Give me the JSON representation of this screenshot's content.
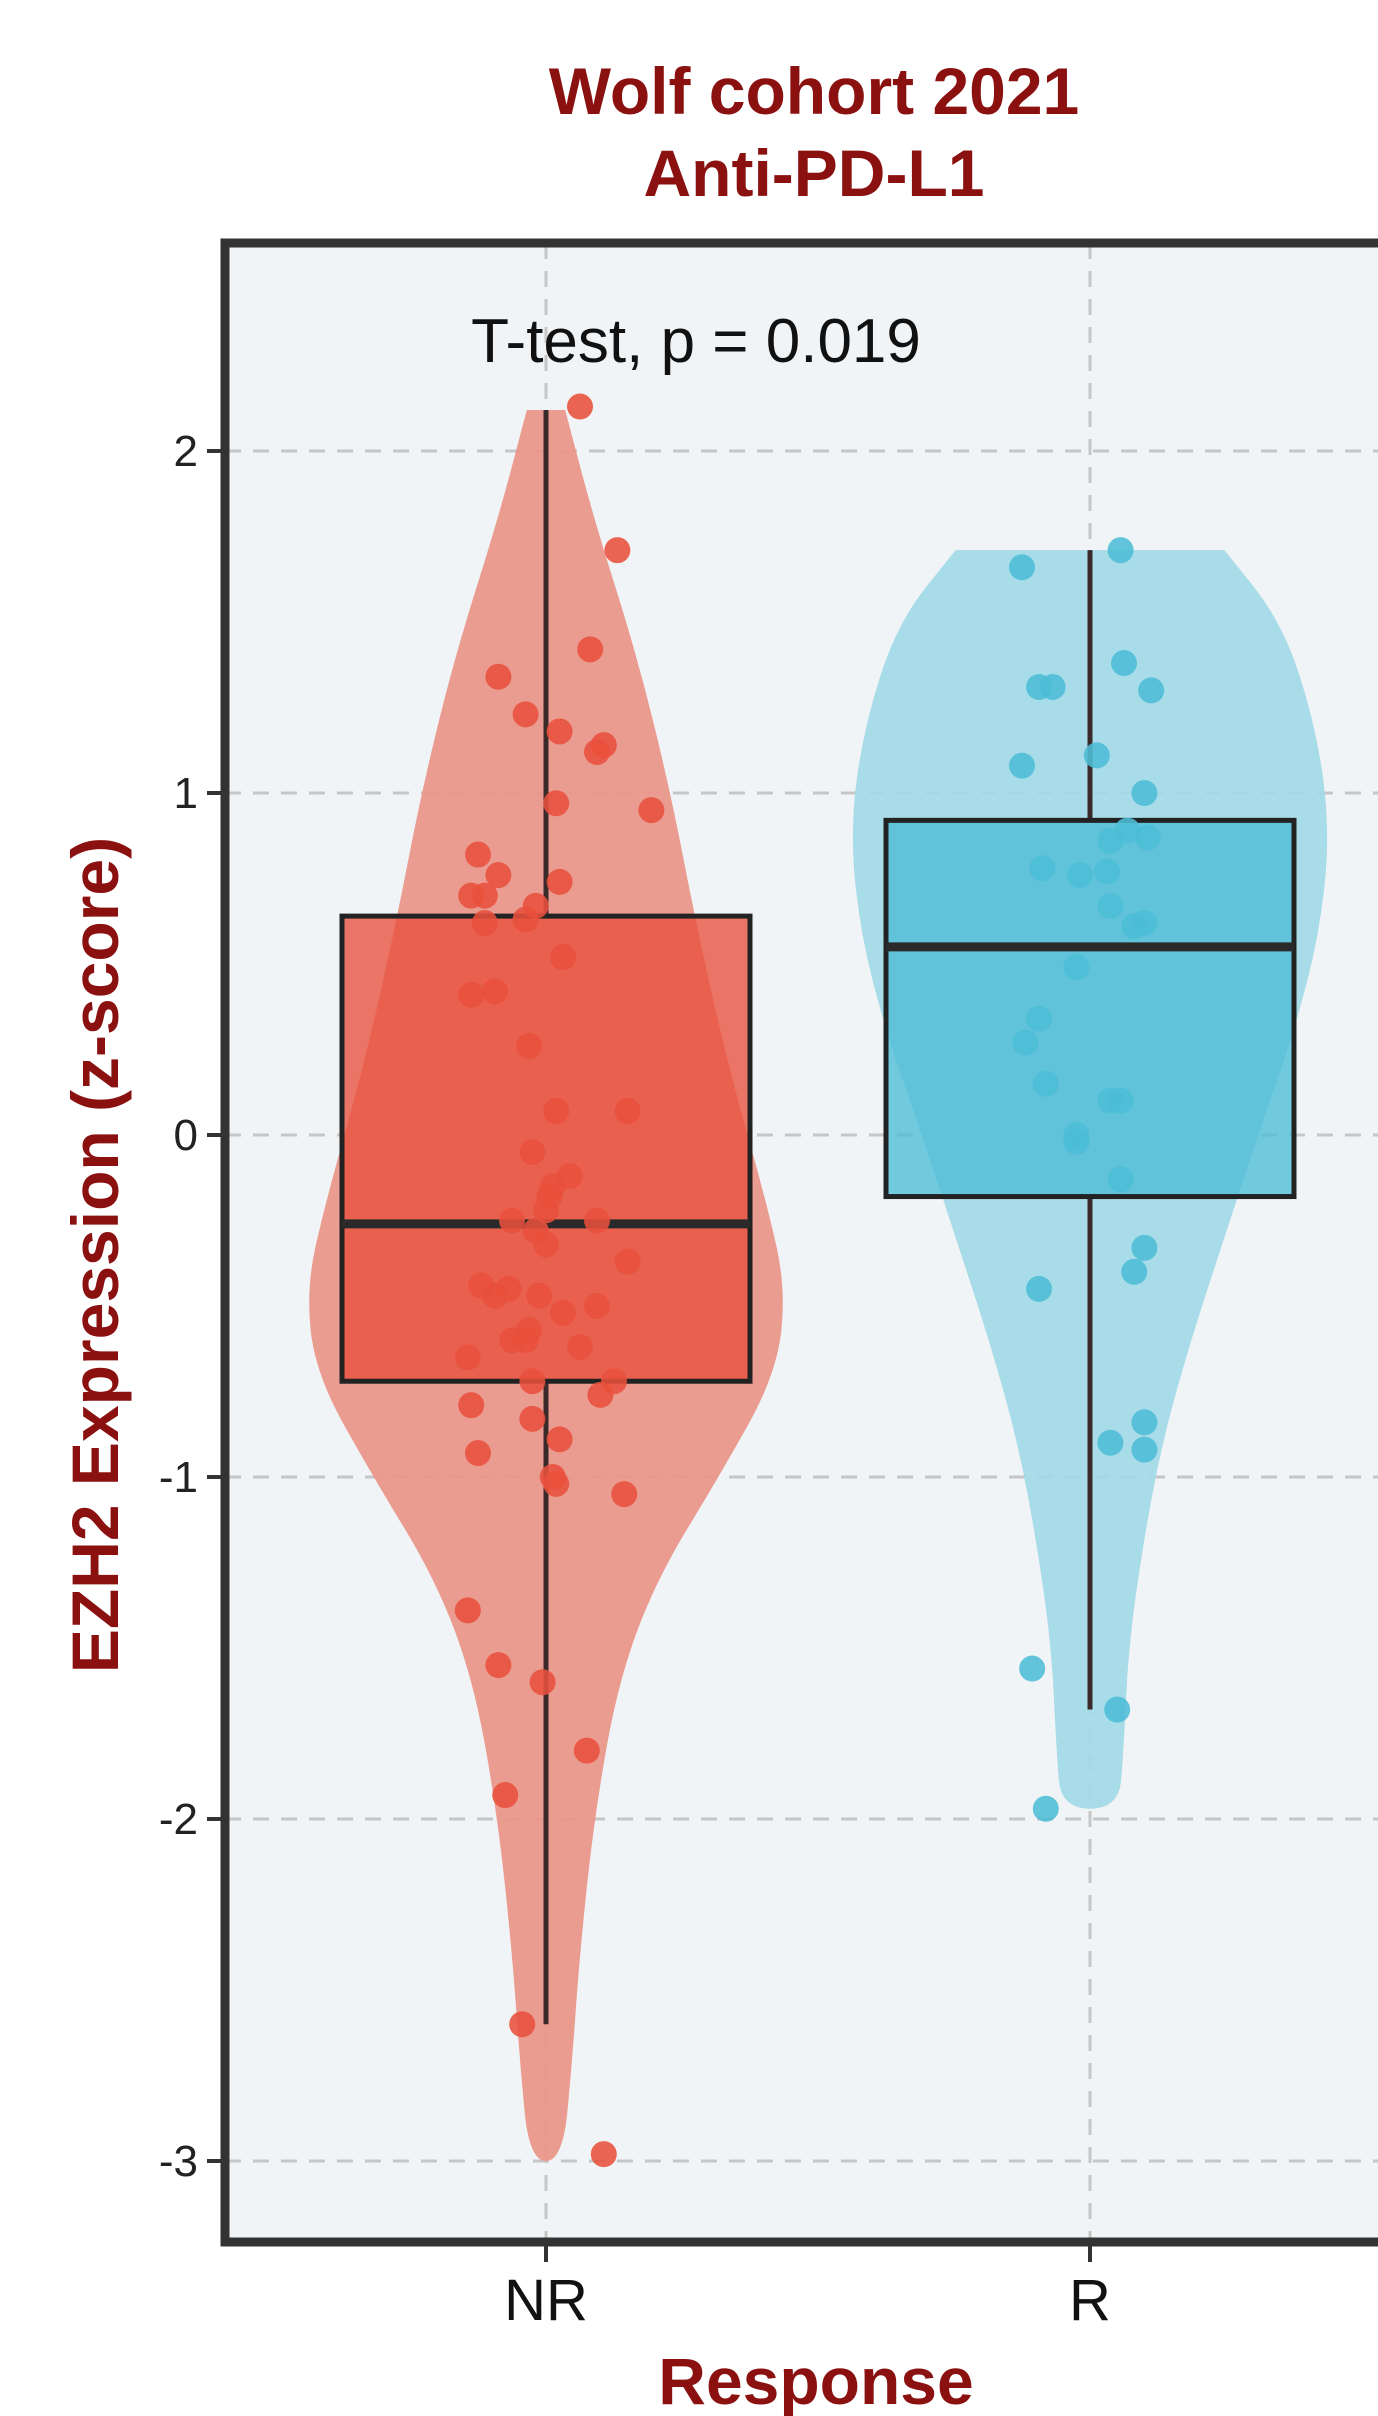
{
  "chart_data": {
    "type": "violin-box",
    "title": "Wolf cohort 2021",
    "subtitle": "Anti-PD-L1",
    "xlabel": "Response",
    "ylabel": "EZH2 Expression (z-score)",
    "annotation": "T-test, p = 0.019",
    "ylim": [
      -3.25,
      2.6
    ],
    "yticks": [
      -3,
      -2,
      -1,
      0,
      1,
      2
    ],
    "ytick_labels": [
      "-3",
      "-2",
      "-1",
      "0",
      "1",
      "2"
    ],
    "categories": [
      "NR",
      "R"
    ],
    "grid": true,
    "legend": "none",
    "colors": {
      "title": "#8B1010",
      "NR_fill": "#E8503C",
      "NR_violin": "#EA9488",
      "R_fill": "#4CBDD6",
      "R_violin": "#A2D9E6",
      "panel_bg": "#F1F4F6",
      "grid": "#C6C6C6",
      "axis": "#333333"
    },
    "series": [
      {
        "name": "NR",
        "box": {
          "min": -2.6,
          "q1": -0.72,
          "median": -0.26,
          "q3": 0.64,
          "max": 2.12
        },
        "violin": [
          [
            2.12,
            0.08
          ],
          [
            1.8,
            0.2
          ],
          [
            1.4,
            0.38
          ],
          [
            1.0,
            0.52
          ],
          [
            0.6,
            0.63
          ],
          [
            0.2,
            0.76
          ],
          [
            -0.2,
            0.92
          ],
          [
            -0.45,
            1.0
          ],
          [
            -0.7,
            0.96
          ],
          [
            -1.0,
            0.72
          ],
          [
            -1.3,
            0.46
          ],
          [
            -1.6,
            0.3
          ],
          [
            -2.0,
            0.2
          ],
          [
            -2.4,
            0.14
          ],
          [
            -2.7,
            0.11
          ],
          [
            -3.0,
            0.07
          ]
        ],
        "points": [
          [
            0.1,
            2.13
          ],
          [
            0.21,
            1.71
          ],
          [
            0.13,
            1.42
          ],
          [
            -0.14,
            1.34
          ],
          [
            -0.06,
            1.23
          ],
          [
            0.04,
            1.18
          ],
          [
            0.17,
            1.14
          ],
          [
            0.15,
            1.12
          ],
          [
            0.31,
            0.95
          ],
          [
            0.03,
            0.97
          ],
          [
            -0.2,
            0.82
          ],
          [
            -0.14,
            0.76
          ],
          [
            0.04,
            0.74
          ],
          [
            -0.22,
            0.7
          ],
          [
            -0.18,
            0.7
          ],
          [
            -0.03,
            0.67
          ],
          [
            -0.06,
            0.63
          ],
          [
            -0.18,
            0.62
          ],
          [
            0.05,
            0.52
          ],
          [
            -0.15,
            0.42
          ],
          [
            -0.22,
            0.41
          ],
          [
            -0.05,
            0.26
          ],
          [
            0.24,
            0.07
          ],
          [
            0.03,
            0.07
          ],
          [
            -0.04,
            -0.05
          ],
          [
            0.07,
            -0.12
          ],
          [
            0.02,
            -0.15
          ],
          [
            0.01,
            -0.18
          ],
          [
            0.0,
            -0.22
          ],
          [
            -0.1,
            -0.25
          ],
          [
            0.15,
            -0.25
          ],
          [
            -0.03,
            -0.28
          ],
          [
            0.0,
            -0.32
          ],
          [
            0.24,
            -0.37
          ],
          [
            -0.19,
            -0.44
          ],
          [
            -0.11,
            -0.45
          ],
          [
            -0.15,
            -0.47
          ],
          [
            -0.02,
            -0.47
          ],
          [
            0.15,
            -0.5
          ],
          [
            0.05,
            -0.52
          ],
          [
            -0.05,
            -0.57
          ],
          [
            -0.06,
            -0.6
          ],
          [
            -0.1,
            -0.6
          ],
          [
            0.1,
            -0.62
          ],
          [
            -0.23,
            -0.65
          ],
          [
            -0.04,
            -0.72
          ],
          [
            0.2,
            -0.72
          ],
          [
            0.16,
            -0.76
          ],
          [
            -0.22,
            -0.79
          ],
          [
            -0.04,
            -0.83
          ],
          [
            0.04,
            -0.89
          ],
          [
            -0.2,
            -0.93
          ],
          [
            0.02,
            -1.0
          ],
          [
            0.03,
            -1.02
          ],
          [
            0.23,
            -1.05
          ],
          [
            -0.23,
            -1.39
          ],
          [
            -0.14,
            -1.55
          ],
          [
            -0.01,
            -1.6
          ],
          [
            0.12,
            -1.8
          ],
          [
            -0.12,
            -1.93
          ],
          [
            -0.07,
            -2.6
          ],
          [
            0.17,
            -2.98
          ]
        ]
      },
      {
        "name": "R",
        "box": {
          "min": -1.68,
          "q1": -0.18,
          "median": 0.55,
          "q3": 0.92,
          "max": 1.71
        },
        "violin": [
          [
            1.71,
            0.56
          ],
          [
            1.5,
            0.8
          ],
          [
            1.2,
            0.94
          ],
          [
            0.9,
            1.0
          ],
          [
            0.6,
            0.96
          ],
          [
            0.3,
            0.85
          ],
          [
            0.0,
            0.7
          ],
          [
            -0.3,
            0.56
          ],
          [
            -0.6,
            0.42
          ],
          [
            -0.9,
            0.3
          ],
          [
            -1.2,
            0.22
          ],
          [
            -1.5,
            0.16
          ],
          [
            -1.8,
            0.14
          ],
          [
            -1.97,
            0.12
          ]
        ],
        "points": [
          [
            -0.2,
            1.66
          ],
          [
            0.09,
            1.71
          ],
          [
            -0.15,
            1.31
          ],
          [
            -0.11,
            1.31
          ],
          [
            0.1,
            1.38
          ],
          [
            0.18,
            1.3
          ],
          [
            -0.2,
            1.08
          ],
          [
            0.02,
            1.11
          ],
          [
            0.16,
            1.0
          ],
          [
            0.06,
            0.86
          ],
          [
            0.11,
            0.89
          ],
          [
            0.17,
            0.87
          ],
          [
            -0.14,
            0.78
          ],
          [
            -0.03,
            0.76
          ],
          [
            0.05,
            0.77
          ],
          [
            0.06,
            0.67
          ],
          [
            0.13,
            0.61
          ],
          [
            0.16,
            0.62
          ],
          [
            -0.04,
            0.49
          ],
          [
            -0.15,
            0.34
          ],
          [
            -0.19,
            0.27
          ],
          [
            -0.13,
            0.15
          ],
          [
            0.06,
            0.1
          ],
          [
            0.09,
            0.1
          ],
          [
            -0.04,
            0.0
          ],
          [
            -0.04,
            -0.02
          ],
          [
            0.09,
            -0.13
          ],
          [
            -0.15,
            -0.45
          ],
          [
            0.16,
            -0.33
          ],
          [
            0.13,
            -0.4
          ],
          [
            0.16,
            -0.84
          ],
          [
            0.16,
            -0.92
          ],
          [
            0.06,
            -0.9
          ],
          [
            -0.17,
            -1.56
          ],
          [
            0.08,
            -1.68
          ],
          [
            -0.13,
            -1.97
          ]
        ]
      }
    ]
  }
}
